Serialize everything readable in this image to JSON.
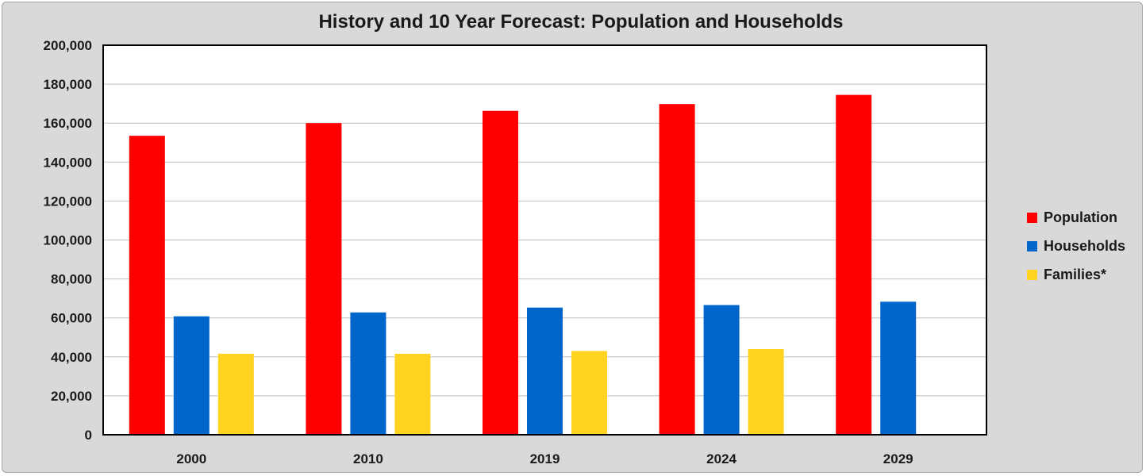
{
  "chart_data": {
    "type": "bar",
    "title": "History and 10 Year Forecast: Population and Households",
    "xlabel": "",
    "ylabel": "",
    "categories": [
      "2000",
      "2010",
      "2019",
      "2024",
      "2029"
    ],
    "series": [
      {
        "name": "Population",
        "color": "#ff0000",
        "values": [
          153500,
          160000,
          166300,
          169800,
          174500
        ]
      },
      {
        "name": "Households",
        "color": "#0066cc",
        "values": [
          60800,
          62800,
          65300,
          66600,
          68300
        ]
      },
      {
        "name": "Families*",
        "color": "#ffd320",
        "values": [
          41600,
          41600,
          43000,
          44000,
          null
        ]
      }
    ],
    "ylim": [
      0,
      200000
    ],
    "yticks": [
      "0",
      "20,000",
      "40,000",
      "60,000",
      "80,000",
      "100,000",
      "120,000",
      "140,000",
      "160,000",
      "180,000",
      "200,000"
    ],
    "grid": true,
    "legend_position": "right"
  }
}
